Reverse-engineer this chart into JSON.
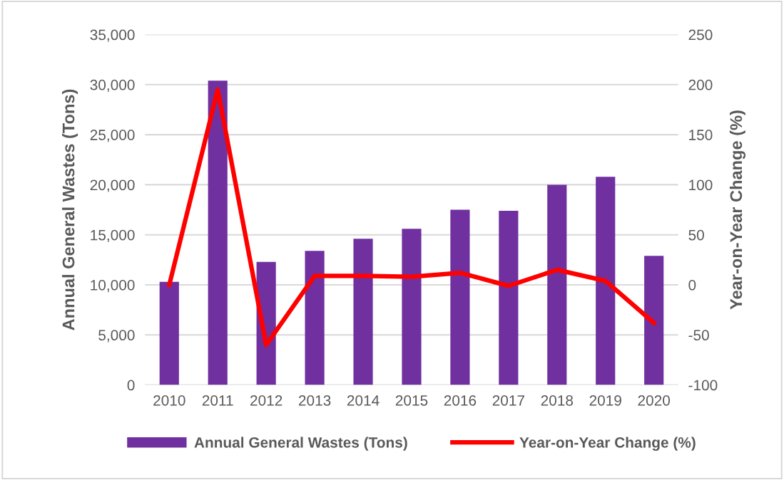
{
  "chart_data": {
    "type": "bar",
    "categories": [
      "2010",
      "2011",
      "2012",
      "2013",
      "2014",
      "2015",
      "2016",
      "2017",
      "2018",
      "2019",
      "2020"
    ],
    "series": [
      {
        "name": "Annual General Wastes (Tons)",
        "color": "#7030a0",
        "values": [
          10300,
          30400,
          12300,
          13400,
          14600,
          15600,
          17500,
          17400,
          20000,
          20800,
          12900
        ]
      },
      {
        "name": "Year-on-Year Change (%)",
        "type": "line",
        "axis": "y2",
        "color": "#ff0000",
        "values": [
          0,
          195,
          -60,
          9,
          9,
          8,
          12,
          -1,
          15,
          4,
          -38
        ]
      }
    ],
    "ylabel": "Annual General Wastes (Tons)",
    "y2label": "Year-on-Year Change (%)",
    "ylim": [
      0,
      35000
    ],
    "yticks": [
      {
        "value": 0,
        "label": "0"
      },
      {
        "value": 5000,
        "label": "5,000"
      },
      {
        "value": 10000,
        "label": "10,000"
      },
      {
        "value": 15000,
        "label": "15,000"
      },
      {
        "value": 20000,
        "label": "20,000"
      },
      {
        "value": 25000,
        "label": "25,000"
      },
      {
        "value": 30000,
        "label": "30,000"
      },
      {
        "value": 35000,
        "label": "35,000"
      }
    ],
    "y2lim": [
      -100,
      250
    ],
    "y2ticks": [
      -100,
      -50,
      0,
      50,
      100,
      150,
      200,
      250
    ],
    "grid": "y",
    "legend": "bottom",
    "line_style": "solid",
    "marker": "none"
  }
}
